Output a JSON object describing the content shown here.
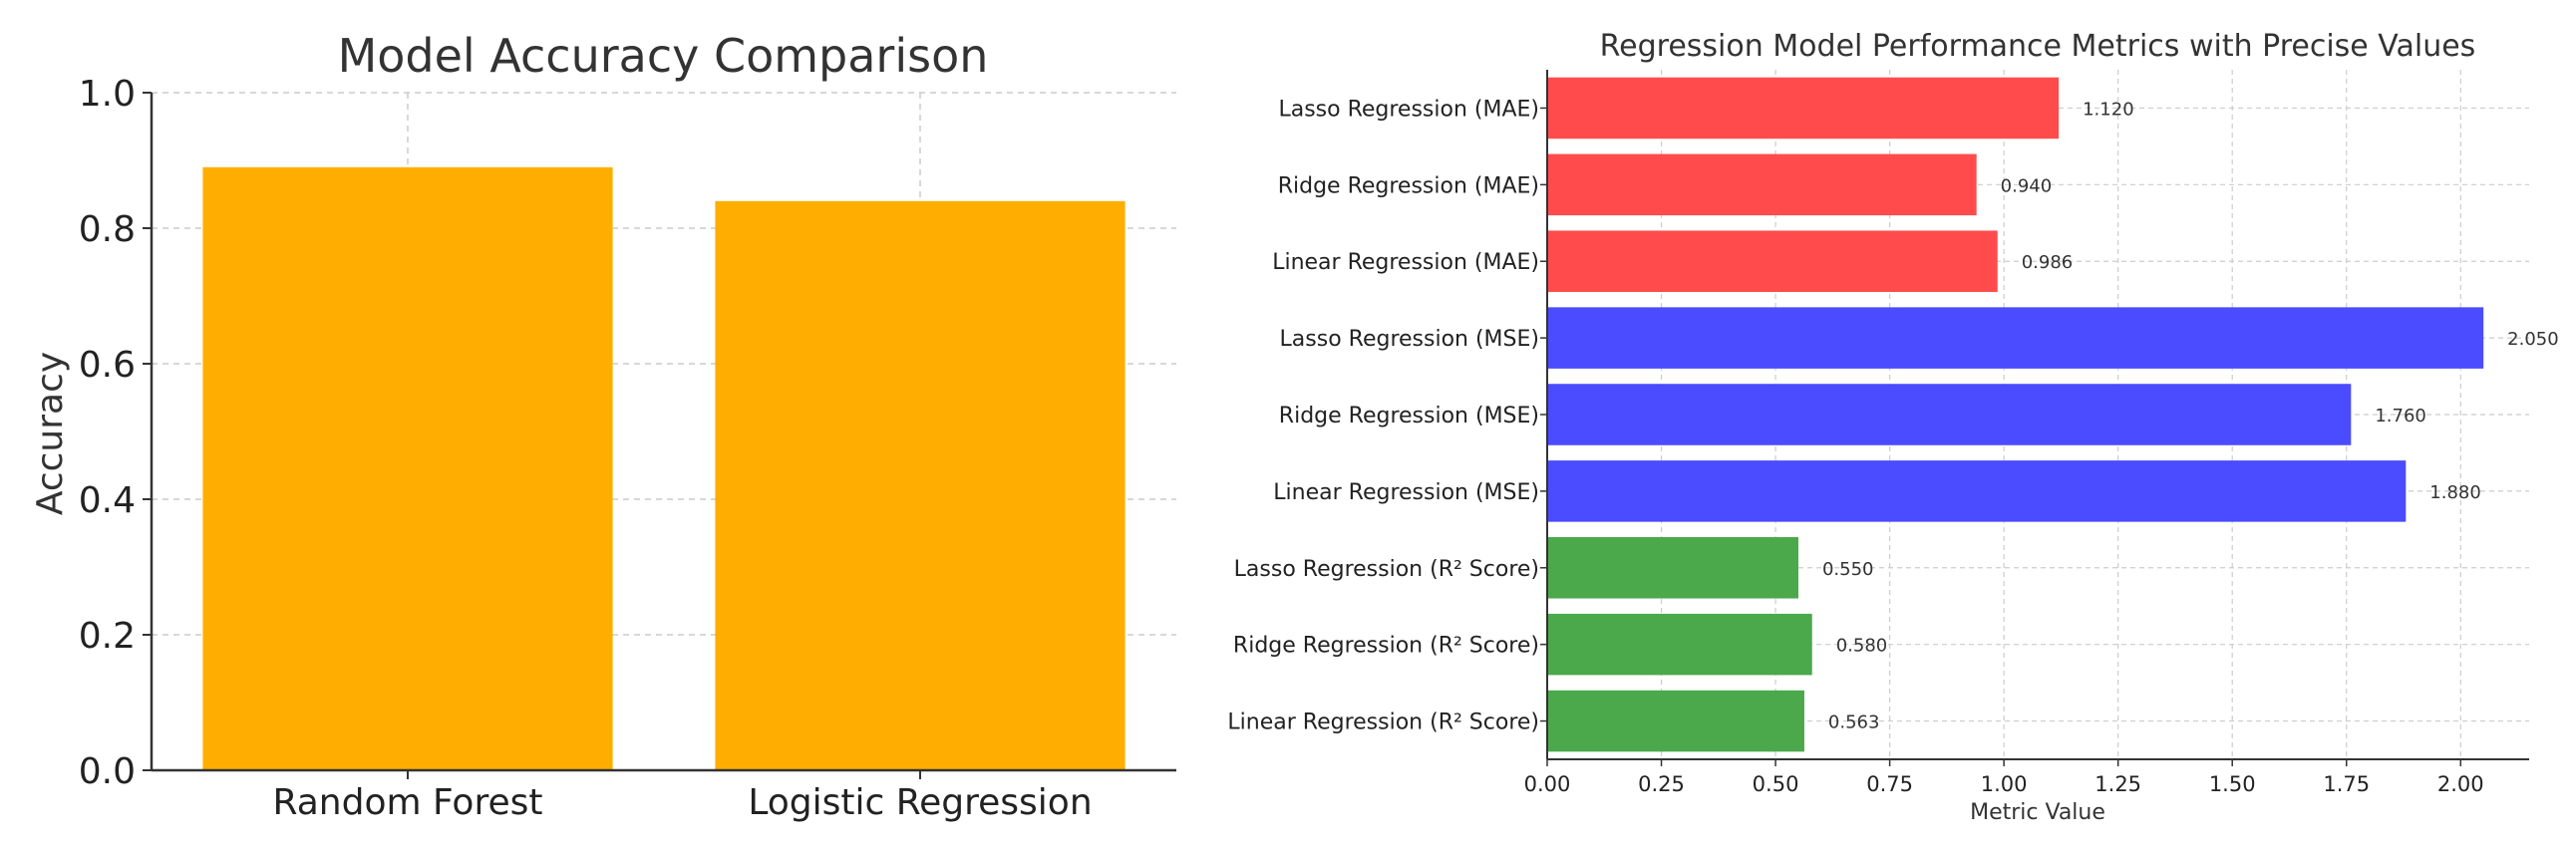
{
  "chart_data": [
    {
      "type": "bar",
      "title": "Model Accuracy Comparison",
      "xlabel": "",
      "ylabel": "Accuracy",
      "categories": [
        "Random Forest",
        "Logistic Regression"
      ],
      "values": [
        0.89,
        0.84
      ],
      "ylim": [
        0,
        1.0
      ],
      "yticks": [
        "0.0",
        "0.2",
        "0.4",
        "0.6",
        "0.8",
        "1.0"
      ],
      "grid": true,
      "bar_color": "#FFAE00"
    },
    {
      "type": "bar",
      "orientation": "horizontal",
      "title": "Regression Model Performance Metrics with Precise Values",
      "xlabel": "Metric Value",
      "ylabel": "",
      "categories": [
        "Lasso Regression (MAE)",
        "Ridge Regression (MAE)",
        "Linear Regression (MAE)",
        "Lasso Regression (MSE)",
        "Ridge Regression (MSE)",
        "Linear Regression (MSE)",
        "Lasso Regression (R² Score)",
        "Ridge Regression (R² Score)",
        "Linear Regression (R² Score)"
      ],
      "values": [
        1.12,
        0.94,
        0.986,
        2.05,
        1.76,
        1.88,
        0.55,
        0.58,
        0.563
      ],
      "value_labels": [
        "1.120",
        "0.940",
        "0.986",
        "2.050",
        "1.760",
        "1.880",
        "0.550",
        "0.580",
        "0.563"
      ],
      "colors": [
        "#FF4B4B",
        "#FF4B4B",
        "#FF4B4B",
        "#4B4BFF",
        "#4B4BFF",
        "#4B4BFF",
        "#4BA84B",
        "#4BA84B",
        "#4BA84B"
      ],
      "xlim": [
        0,
        2.15
      ],
      "xticks": [
        "0.00",
        "0.25",
        "0.50",
        "0.75",
        "1.00",
        "1.25",
        "1.50",
        "1.75",
        "2.00"
      ],
      "grid": true
    }
  ]
}
